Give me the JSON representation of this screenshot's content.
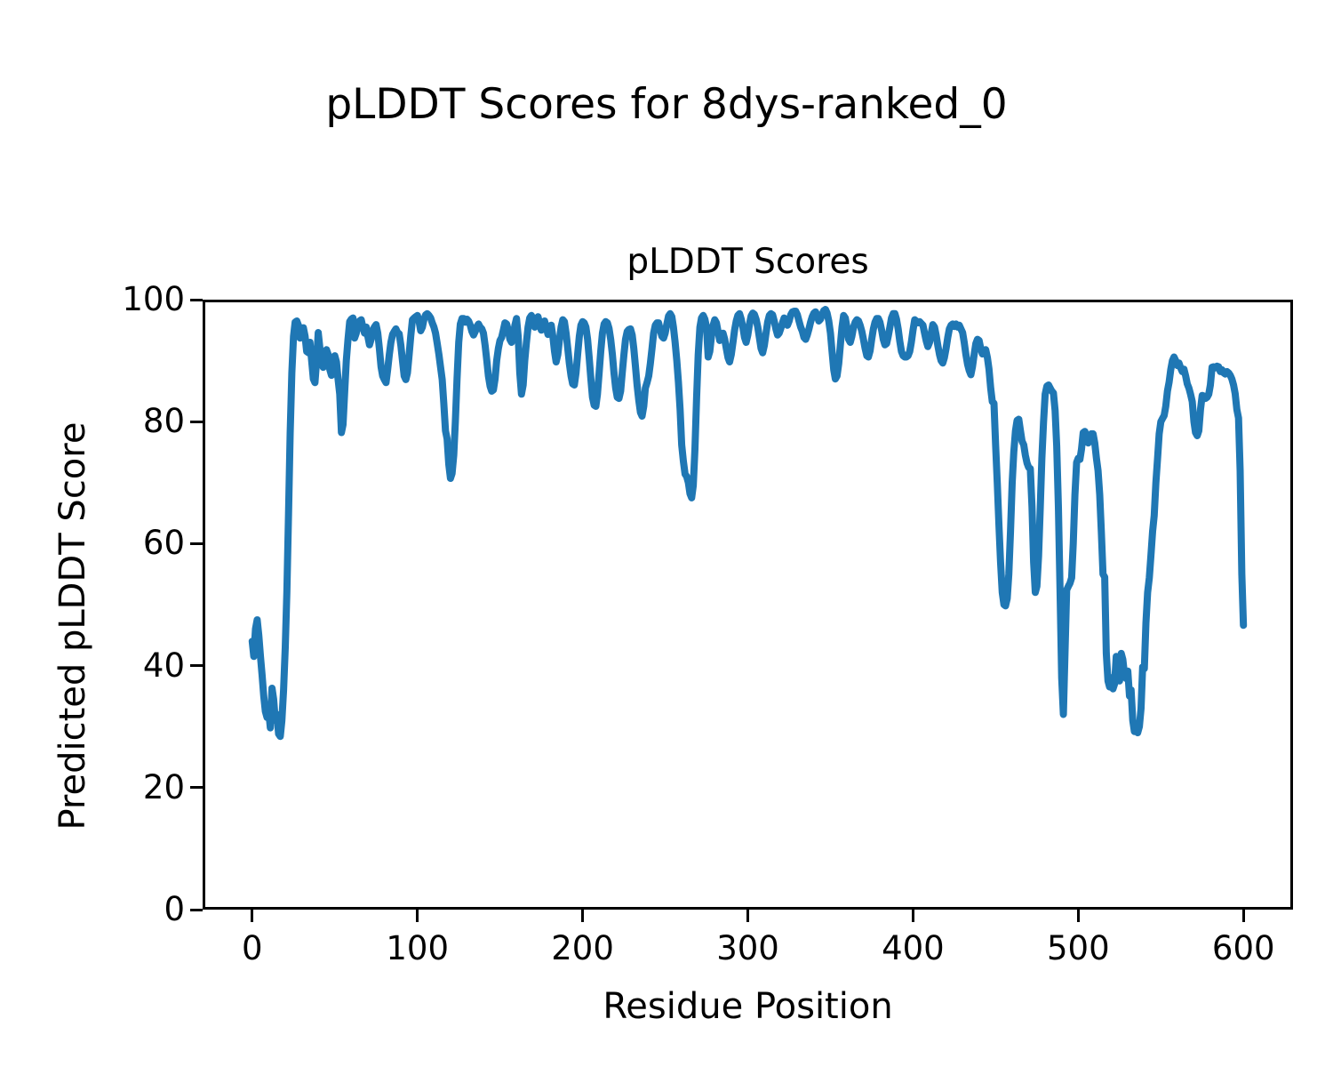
{
  "figure": {
    "suptitle": "pLDDT Scores for 8dys-ranked_0",
    "axes_title": "pLDDT Scores",
    "xlabel": "Residue Position",
    "ylabel": "Predicted pLDDT Score",
    "background": "#ffffff",
    "text_color": "#000000",
    "line_color": "#1f77b4"
  },
  "chart_data": {
    "type": "line",
    "title": "pLDDT Scores",
    "suptitle": "pLDDT Scores for 8dys-ranked_0",
    "xlabel": "Residue Position",
    "ylabel": "Predicted pLDDT Score",
    "xlim": [
      -30,
      630
    ],
    "ylim": [
      0,
      100
    ],
    "x_ticks": [
      0,
      100,
      200,
      300,
      400,
      500,
      600
    ],
    "y_ticks": [
      0,
      20,
      40,
      60,
      80,
      100
    ],
    "grid": false,
    "legend": null,
    "series": [
      {
        "name": "pLDDT",
        "color": "#1f77b4",
        "x_start": 0,
        "x_step": 1,
        "values": [
          44,
          41.5,
          46,
          47.5,
          45,
          41.5,
          38.5,
          35,
          32.5,
          31.5,
          32.5,
          29.8,
          36.3,
          34.5,
          31,
          32,
          28.8,
          28.4,
          31,
          36,
          43,
          52,
          65,
          78,
          88,
          94,
          96.3,
          96.5,
          95.8,
          93.7,
          94.5,
          95.4,
          94,
          91.5,
          91.3,
          93,
          90,
          87,
          86.4,
          90,
          94.6,
          92,
          89.5,
          88.9,
          90.5,
          91.8,
          91,
          88.5,
          87.6,
          89,
          90.8,
          89.8,
          87,
          84.5,
          78.2,
          79.5,
          85,
          90,
          93.5,
          96.4,
          96.8,
          97,
          93.7,
          94.5,
          96,
          96.5,
          96.7,
          95.5,
          94.5,
          95.5,
          94,
          92.6,
          93.5,
          95,
          95.5,
          95.9,
          94.5,
          92,
          89,
          87.5,
          86.9,
          86.4,
          88.5,
          91,
          93,
          94.3,
          94.8,
          95.2,
          94.6,
          94.4,
          92.5,
          90,
          87.5,
          86.9,
          88,
          91,
          94,
          96.7,
          97,
          97.2,
          97.4,
          96.5,
          94.9,
          95.5,
          96.8,
          97.5,
          97.7,
          97.4,
          97,
          96.2,
          95.5,
          94.5,
          92.8,
          91,
          89,
          86.9,
          83,
          78.5,
          77.2,
          73,
          70.7,
          71.5,
          74.5,
          80,
          87,
          93,
          96,
          96.9,
          96.9,
          96.3,
          96.8,
          96.5,
          95.8,
          94.8,
          94.2,
          94.8,
          95.6,
          96,
          95.5,
          95.2,
          94.5,
          92.5,
          90,
          87.5,
          85.8,
          85,
          85.2,
          87,
          90,
          92,
          93.3,
          93.8,
          95,
          96.2,
          96,
          95,
          93.5,
          93,
          94,
          95.8,
          96.9,
          94,
          88,
          84.5,
          86,
          90,
          93,
          95.5,
          97,
          97.4,
          96.5,
          95.5,
          96.8,
          97.2,
          96,
          95,
          95.8,
          96.5,
          95.5,
          94.3,
          95.2,
          95.8,
          94,
          91.5,
          89.8,
          91,
          93.5,
          95.5,
          96.7,
          96.4,
          94.5,
          92,
          89.5,
          87.5,
          86.2,
          86,
          88,
          91,
          94,
          95.8,
          96.4,
          96.2,
          95.5,
          93.5,
          90.5,
          87,
          84,
          82.7,
          82.5,
          84.5,
          88,
          91.5,
          94.5,
          96,
          96.4,
          96.2,
          95.3,
          93.5,
          91,
          88,
          85.5,
          84,
          83.8,
          85,
          88,
          91,
          93.5,
          94.8,
          95.1,
          95.2,
          94.2,
          92,
          89,
          86,
          83.5,
          81.5,
          80.9,
          82.5,
          85.5,
          86.4,
          87.5,
          89.5,
          92,
          94.5,
          95.8,
          96.2,
          96.2,
          95,
          94,
          93.7,
          94.5,
          96,
          97.3,
          97.7,
          97.2,
          95.5,
          93,
          90,
          86.5,
          82,
          76.2,
          73.5,
          71.4,
          71,
          70,
          68.2,
          67.5,
          69.5,
          75.5,
          84,
          91,
          95.5,
          97,
          97.4,
          96.8,
          95.5,
          90.6,
          91.5,
          94,
          95.8,
          96.7,
          96.2,
          94.8,
          93.3,
          93.8,
          94.5,
          93.5,
          92,
          90.5,
          89.8,
          91,
          93,
          95,
          96.5,
          97.4,
          97.7,
          96.8,
          95.5,
          93.8,
          93,
          94.2,
          96,
          97.3,
          97.8,
          97.6,
          96.8,
          95.5,
          93.8,
          92,
          91.3,
          92.5,
          94.5,
          96.3,
          97.4,
          97.7,
          97.5,
          96.5,
          95.2,
          94.2,
          94.5,
          95.3,
          96.2,
          97,
          96.5,
          95.8,
          96.5,
          97.5,
          98,
          98.1,
          98.1,
          97.5,
          96.5,
          95.5,
          94.8,
          93.8,
          93.5,
          94.2,
          95.2,
          96.3,
          97.2,
          97.8,
          98,
          97.4,
          96.5,
          96.8,
          97.6,
          98.2,
          98.4,
          97.8,
          96.5,
          94.5,
          91.5,
          88.5,
          87,
          87.5,
          89.5,
          92.5,
          95.5,
          97.4,
          97,
          95.5,
          93.5,
          93,
          94,
          95.5,
          96.3,
          96.7,
          96.5,
          95.8,
          94.8,
          93.5,
          92,
          90.8,
          90.6,
          91.6,
          93.5,
          95.2,
          96.3,
          96.9,
          96.9,
          96.3,
          95,
          93.5,
          92.6,
          92.8,
          94,
          95.5,
          97,
          97.7,
          97.7,
          96.8,
          95.2,
          93.2,
          91.5,
          90.8,
          90.6,
          90.6,
          90.8,
          91.5,
          93,
          95,
          96.7,
          96.5,
          96.2,
          96.4,
          96.1,
          95.8,
          94.5,
          93.2,
          92.3,
          93,
          94.5,
          95.9,
          95.5,
          94.2,
          92.5,
          91,
          90,
          89.6,
          90.5,
          92,
          93.8,
          95.2,
          95.8,
          96,
          95.6,
          96,
          95.5,
          95.8,
          95.2,
          94.6,
          93,
          91,
          89.4,
          88.4,
          87.7,
          89,
          91,
          92.8,
          93.5,
          93.3,
          92,
          91.1,
          91.5,
          91.8,
          90.5,
          88.6,
          85.5,
          83.3,
          83,
          76,
          70,
          63,
          57,
          52,
          50,
          49.8,
          51,
          55,
          62,
          70,
          75,
          78.5,
          80.2,
          80.4,
          78.5,
          76.8,
          76.2,
          74.5,
          73.2,
          72.5,
          72.3,
          66,
          57,
          52,
          53,
          58,
          66,
          74,
          80,
          84.5,
          85.8,
          86,
          85.5,
          85,
          84.7,
          81.8,
          76,
          66,
          52,
          38,
          32,
          42,
          52.4,
          53,
          53.5,
          54.4,
          60,
          68,
          73.3,
          74,
          73.8,
          75.5,
          78.2,
          78.4,
          77.5,
          76.5,
          77.2,
          78,
          78,
          76.5,
          74,
          72,
          68,
          62,
          55,
          54.5,
          42,
          37.5,
          36.5,
          38,
          36.2,
          37,
          41.5,
          38,
          37.5,
          42,
          41,
          38.5,
          37.9,
          39.1,
          35,
          36,
          31,
          29.2,
          30.5,
          29,
          30,
          33,
          39.8,
          39.5,
          47,
          52,
          54.4,
          58,
          62,
          64.6,
          70,
          74,
          78,
          80,
          80.5,
          81,
          82.5,
          85,
          86.5,
          88.5,
          90,
          90.6,
          90,
          89.2,
          89.6,
          88.8,
          88.2,
          88.6,
          87.5,
          86.2,
          85.5,
          84.5,
          83.3,
          80,
          78.2,
          77.7,
          78.5,
          82,
          84.3,
          84.2,
          83.8,
          84,
          84.5,
          86,
          88.9,
          89,
          88.8,
          89.1,
          89,
          88.2,
          88.5,
          88,
          87.8,
          88.2,
          88,
          87.6,
          87,
          86,
          84.6,
          82,
          80.6,
          72,
          55,
          46.6
        ]
      }
    ]
  }
}
